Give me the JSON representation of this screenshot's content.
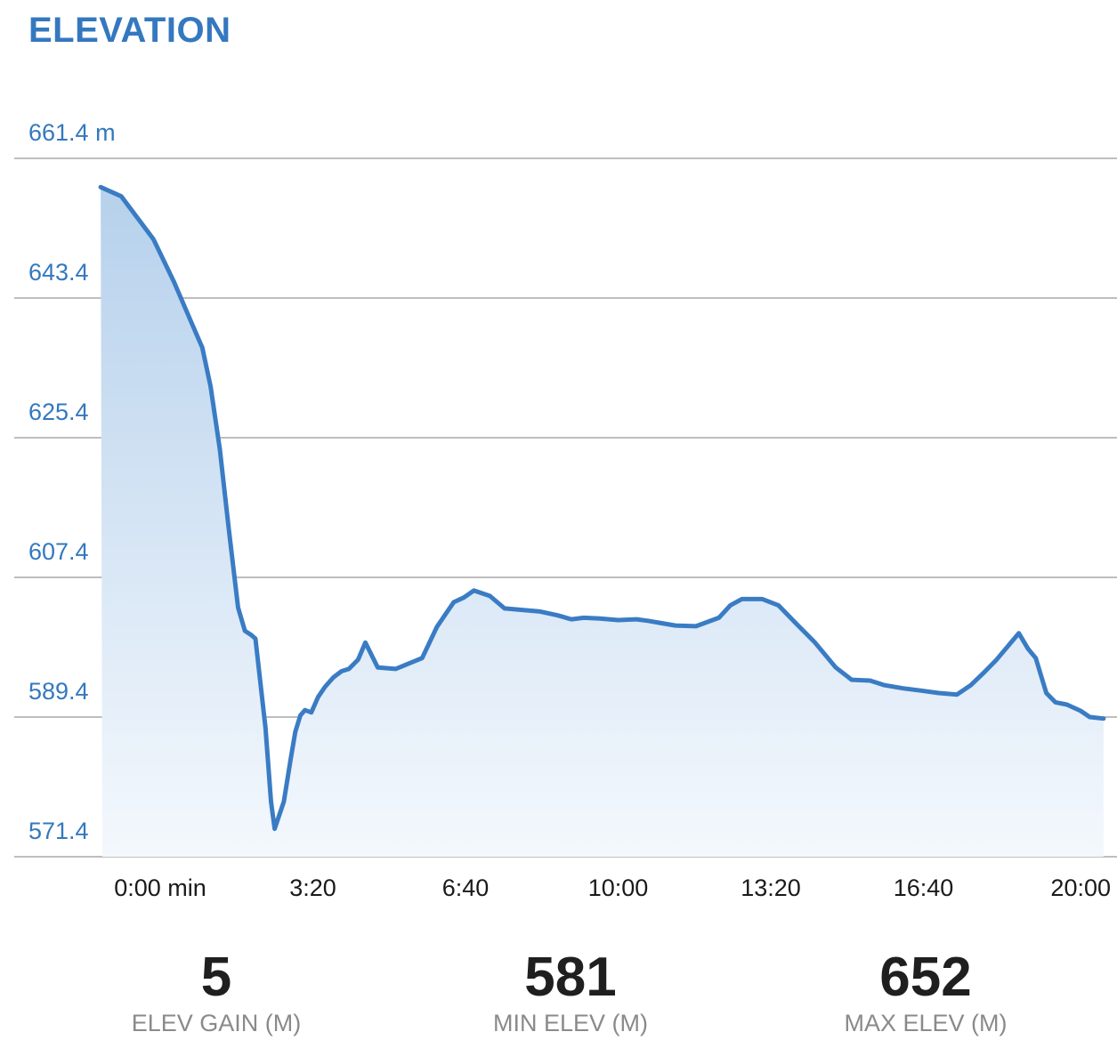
{
  "header": {
    "title": "ELEVATION"
  },
  "chart_data": {
    "type": "area",
    "title": "ELEVATION",
    "y_unit": "m",
    "y_ticks": [
      "661.4 m",
      "643.4",
      "625.4",
      "607.4",
      "589.4",
      "571.4"
    ],
    "y_tick_values": [
      661.4,
      643.4,
      625.4,
      607.4,
      589.4,
      571.4
    ],
    "x_ticks": [
      "0:00 min",
      "3:20",
      "6:40",
      "10:00",
      "13:20",
      "16:40",
      "20:00"
    ],
    "x_tick_minutes": [
      0,
      3.333,
      6.667,
      10,
      13.333,
      16.667,
      20
    ],
    "xlabel": "",
    "ylabel": "",
    "ylim": [
      571.4,
      661.4
    ],
    "xlim_minutes": [
      -1.3,
      20.6
    ],
    "grid": true,
    "colors": {
      "line": "#3a7cc4",
      "fill_top": "#b6d1ec",
      "fill_bottom": "#f4f8fd",
      "tick_text": "#3478bf",
      "x_tick_text": "#1a1a1a",
      "grid": "#a9a9a9"
    },
    "series": [
      {
        "x": [
          -1.3,
          -0.85,
          -0.15,
          0.3,
          0.7,
          0.92,
          1.1,
          1.3,
          1.5,
          1.7,
          1.85,
          1.98,
          2.08,
          2.3,
          2.42,
          2.5,
          2.7,
          2.85,
          2.95,
          3.06,
          3.16,
          3.3,
          3.45,
          3.6,
          3.78,
          3.96,
          4.12,
          4.32,
          4.48,
          4.75,
          5.14,
          5.72,
          6.04,
          6.27,
          6.41,
          6.63,
          6.85,
          7.2,
          7.52,
          8.3,
          8.68,
          8.98,
          9.25,
          9.6,
          10.0,
          10.4,
          10.65,
          10.95,
          11.25,
          11.7,
          12.2,
          12.45,
          12.7,
          13.15,
          13.5,
          13.88,
          14.3,
          14.75,
          15.1,
          15.5,
          15.82,
          16.22,
          16.62,
          17.0,
          17.4,
          17.7,
          18.0,
          18.25,
          18.55,
          18.75,
          18.95,
          19.12,
          19.35,
          19.55,
          19.8,
          20.1,
          20.3,
          20.6
        ],
        "y": [
          657.7,
          656.5,
          651.0,
          645.5,
          640.0,
          637.0,
          632.0,
          624.0,
          613.5,
          603.5,
          600.5,
          600.0,
          599.5,
          588.0,
          578.5,
          575.0,
          578.5,
          584.0,
          587.5,
          589.6,
          590.3,
          590.0,
          592.0,
          593.3,
          594.5,
          595.3,
          595.6,
          596.8,
          599.0,
          595.8,
          595.6,
          597.0,
          601.0,
          603.0,
          604.2,
          604.8,
          605.7,
          605.0,
          603.4,
          603.0,
          602.5,
          602.0,
          602.2,
          602.1,
          601.9,
          602.0,
          601.8,
          601.5,
          601.2,
          601.1,
          602.2,
          603.8,
          604.6,
          604.6,
          603.8,
          601.5,
          599.0,
          595.8,
          594.2,
          594.1,
          593.5,
          593.1,
          592.8,
          592.5,
          592.3,
          593.5,
          595.2,
          596.7,
          598.8,
          600.2,
          598.2,
          597.0,
          592.5,
          591.3,
          591.0,
          590.2,
          589.4,
          589.2
        ]
      }
    ]
  },
  "stats": [
    {
      "value": "5",
      "label": "ELEV GAIN (M)"
    },
    {
      "value": "581",
      "label": "MIN ELEV (M)"
    },
    {
      "value": "652",
      "label": "MAX ELEV (M)"
    }
  ]
}
